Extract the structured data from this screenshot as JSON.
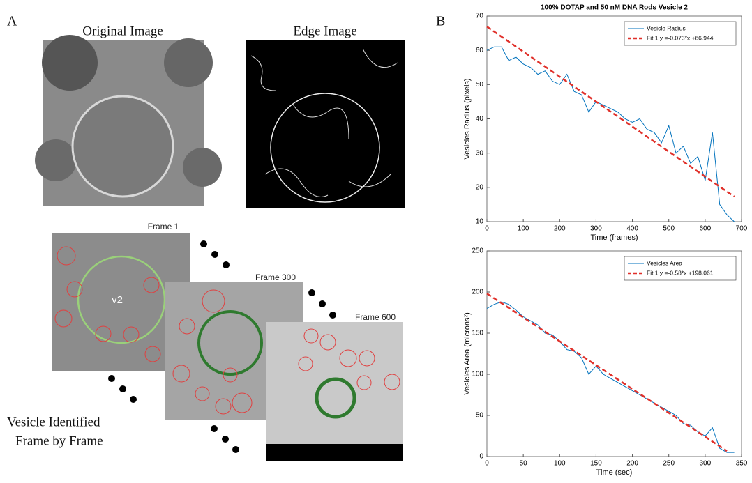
{
  "panel_a": {
    "label": "A",
    "original_title": "Original Image",
    "edge_title": "Edge Image",
    "frame_1": "Frame 1",
    "frame_300": "Frame 300",
    "frame_600": "Frame 600",
    "vesicle_tag": "v2",
    "caption_line_1": "Vesicle Identified",
    "caption_line_2": "Frame by Frame"
  },
  "panel_b_label": "B",
  "chart_data": [
    {
      "type": "line",
      "title": "100% DOTAP and 50 nM DNA Rods Vesicle 2",
      "xlabel": "Time (frames)",
      "ylabel": "Vesicles Radius (pixels)",
      "xlim": [
        0,
        700
      ],
      "xticks": [
        0,
        100,
        200,
        300,
        400,
        500,
        600,
        700
      ],
      "ylim": [
        10,
        70
      ],
      "yticks": [
        10,
        20,
        30,
        40,
        50,
        60,
        70
      ],
      "grid": false,
      "legend": "upper right",
      "series": [
        {
          "name": "Vesicle Radius",
          "color": "#0072bd",
          "style": "solid",
          "x": [
            0,
            20,
            40,
            60,
            80,
            100,
            120,
            140,
            160,
            180,
            200,
            220,
            240,
            260,
            280,
            300,
            320,
            340,
            360,
            380,
            400,
            420,
            440,
            460,
            480,
            500,
            520,
            540,
            560,
            580,
            600,
            620,
            640,
            660,
            680
          ],
          "values": [
            60,
            61,
            61,
            57,
            58,
            56,
            55,
            53,
            54,
            51,
            50,
            53,
            48,
            47,
            42,
            45,
            44,
            43,
            42,
            40,
            39,
            40,
            37,
            36,
            33,
            38,
            30,
            32,
            27,
            29,
            22,
            36,
            15,
            12,
            10
          ]
        },
        {
          "name": "Fit 1 y =-0.073*x +66.944",
          "color": "#e0302a",
          "style": "dashed",
          "x": [
            0,
            680
          ],
          "values": [
            66.9,
            17.3
          ]
        }
      ]
    },
    {
      "type": "line",
      "xlabel": "Time (sec)",
      "ylabel": "Vesicles Area (microns²)",
      "xlim": [
        0,
        350
      ],
      "xticks": [
        0,
        50,
        100,
        150,
        200,
        250,
        300,
        350
      ],
      "ylim": [
        0,
        250
      ],
      "yticks": [
        0,
        50,
        100,
        150,
        200,
        250
      ],
      "grid": false,
      "legend": "upper right",
      "series": [
        {
          "name": "Vesicles Area",
          "color": "#0072bd",
          "style": "solid",
          "x": [
            0,
            10,
            20,
            30,
            40,
            50,
            60,
            70,
            80,
            90,
            100,
            110,
            120,
            130,
            140,
            150,
            160,
            170,
            180,
            190,
            200,
            210,
            220,
            230,
            240,
            250,
            260,
            270,
            280,
            290,
            300,
            310,
            320,
            330,
            340
          ],
          "values": [
            180,
            185,
            188,
            185,
            178,
            170,
            165,
            160,
            150,
            148,
            140,
            130,
            128,
            120,
            100,
            110,
            100,
            95,
            90,
            85,
            80,
            75,
            70,
            65,
            60,
            55,
            50,
            40,
            38,
            30,
            25,
            35,
            10,
            5,
            5
          ]
        },
        {
          "name": "Fit 1 y =-0.58*x +198.061",
          "color": "#e0302a",
          "style": "dashed",
          "x": [
            0,
            330
          ],
          "values": [
            198.1,
            6.7
          ]
        }
      ]
    }
  ]
}
